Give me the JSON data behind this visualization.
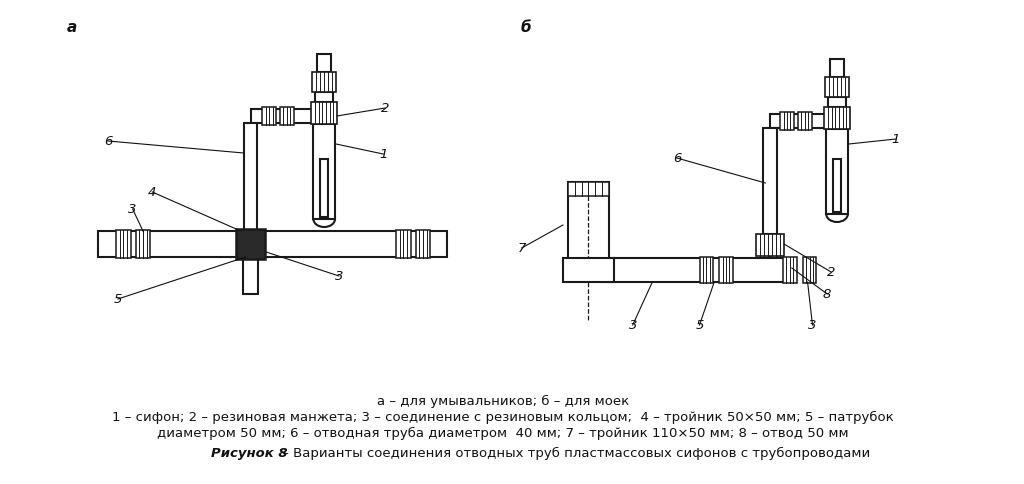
{
  "bg_color": "#ffffff",
  "fig_width": 10.24,
  "fig_height": 4.85,
  "label_a": "а",
  "label_b": "б",
  "caption_line1": "а – для умывальников; б – для моек",
  "caption_line2": "1 – сифон; 2 – резиновая манжета; 3 – соединение с резиновым кольцом;  4 – тройник 50×50 мм; 5 – патрубок",
  "caption_line3": "диаметром 50 мм; 6 – отводная труба диаметром  40 мм; 7 – тройник 110×50 мм; 8 – отвод 50 мм",
  "figure_caption_bold": "Рисунок 8",
  "figure_caption_rest": " – Варианты соединения отводных труб пластмассовых сифонов с трубопроводами",
  "line_color": "#1a1a1a",
  "text_color": "#111111",
  "lw_main": 1.5,
  "fs_label": 11,
  "fs_num": 9.5,
  "fs_cap": 9.5
}
